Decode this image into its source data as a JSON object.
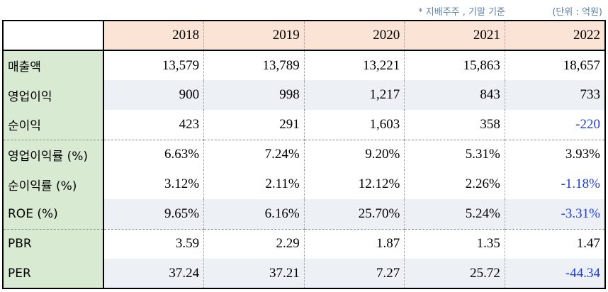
{
  "notes": {
    "basis": "* 지배주주 , 기말 기준",
    "unit": "(단위 : 억원)"
  },
  "table": {
    "years": [
      "2018",
      "2019",
      "2020",
      "2021",
      "2022"
    ],
    "rows": [
      {
        "label": "매출액",
        "values": [
          "13,579",
          "13,789",
          "13,221",
          "15,863",
          "18,657"
        ]
      },
      {
        "label": "영업이익",
        "values": [
          "900",
          "998",
          "1,217",
          "843",
          "733"
        ]
      },
      {
        "label": "순이익",
        "values": [
          "423",
          "291",
          "1,603",
          "358",
          "-220"
        ]
      },
      {
        "label": "영업이익률 (%)",
        "values": [
          "6.63%",
          "7.24%",
          "9.20%",
          "5.31%",
          "3.93%"
        ]
      },
      {
        "label": "순이익률 (%)",
        "values": [
          "3.12%",
          "2.11%",
          "12.12%",
          "2.26%",
          "-1.18%"
        ]
      },
      {
        "label": "ROE (%)",
        "values": [
          "9.65%",
          "6.16%",
          "25.70%",
          "5.24%",
          "-3.31%"
        ]
      },
      {
        "label": "PBR",
        "values": [
          "3.59",
          "2.29",
          "1.87",
          "1.35",
          "1.47"
        ]
      },
      {
        "label": "PER",
        "values": [
          "37.24",
          "37.21",
          "7.27",
          "25.72",
          "-44.34"
        ]
      }
    ]
  },
  "colors": {
    "header_bg": "#fbe4d5",
    "label_bg": "#d9ead3",
    "alt_row_bg": "#edf0f5",
    "negative_text": "#1f3fd6",
    "note_text": "#5b7fa8"
  }
}
